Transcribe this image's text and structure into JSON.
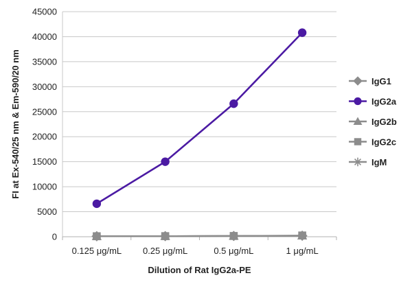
{
  "chart_data": {
    "type": "line",
    "title": "",
    "xlabel": "Dilution of Rat IgG2a-PE",
    "ylabel": "FI at Ex-540/25 nm & Em-590/20 nm",
    "categories": [
      "0.125 μg/mL",
      "0.25 μg/mL",
      "0.5 μg/mL",
      "1 μg/mL"
    ],
    "ylim": [
      0,
      45000
    ],
    "yticks": [
      0,
      5000,
      10000,
      15000,
      20000,
      25000,
      30000,
      35000,
      40000,
      45000
    ],
    "grid": "horizontal",
    "legend_position": "right",
    "series": [
      {
        "name": "IgG1",
        "values": [
          100,
          120,
          150,
          200
        ],
        "color": "#8c8c8c",
        "marker": "diamond"
      },
      {
        "name": "IgG2a",
        "values": [
          6600,
          15000,
          26600,
          40800
        ],
        "color": "#4b1aa3",
        "marker": "circle"
      },
      {
        "name": "IgG2b",
        "values": [
          100,
          120,
          150,
          200
        ],
        "color": "#8c8c8c",
        "marker": "triangle"
      },
      {
        "name": "IgG2c",
        "values": [
          100,
          120,
          150,
          250
        ],
        "color": "#8c8c8c",
        "marker": "square"
      },
      {
        "name": "IgM",
        "values": [
          100,
          120,
          150,
          200
        ],
        "color": "#8c8c8c",
        "marker": "star"
      }
    ]
  }
}
